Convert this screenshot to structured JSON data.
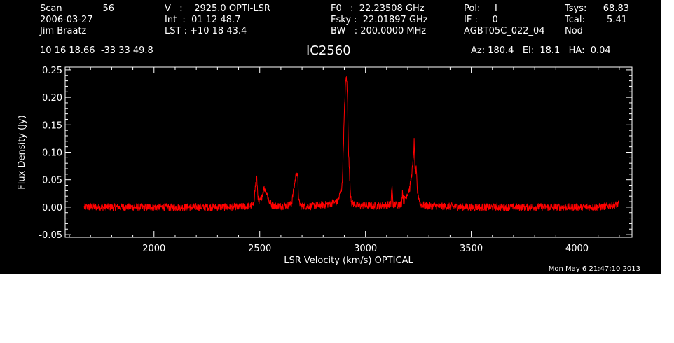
{
  "header": {
    "col1": {
      "scan_label": "Scan",
      "scan_value": "56",
      "date": "2006-03-27",
      "observer": "Jim Braatz"
    },
    "col2": {
      "v_line": "V   :    2925.0 OPTI-LSR",
      "int_line": "Int  :  01 12 48.7",
      "lst_line": "LST : +10 18 43.4"
    },
    "col3": {
      "f0_line": "F0   :  22.23508 GHz",
      "fsky_line": "Fsky :  22.01897 GHz",
      "bw_line": "BW   : 200.0000 MHz"
    },
    "col4": {
      "pol_line": "Pol:     I",
      "if_line": "IF :     0",
      "project": "AGBT05C_022_04"
    },
    "col5": {
      "tsys_label": "Tsys:",
      "tsys_value": "68.83",
      "tcal_label": "Tcal:",
      "tcal_value": "5.41",
      "mode": "Nod"
    },
    "coords": "10 16 18.66  -33 33 49.8",
    "source": "IC2560",
    "pointing": "Az: 180.4   El:  18.1   HA:  0.04"
  },
  "timestamp": "Mon May  6 21:47:10 2013",
  "colors": {
    "trace": "#ff0000",
    "axes": "#ffffff",
    "background": "#000000"
  },
  "chart_data": {
    "type": "line",
    "xlabel": "LSR Velocity (km/s) OPTICAL",
    "ylabel": "Flux Density (Jy)",
    "xlim": [
      1580,
      4260
    ],
    "ylim": [
      -0.055,
      0.255
    ],
    "xticks": [
      2000,
      2500,
      3000,
      3500,
      4000
    ],
    "yticks": [
      -0.05,
      0.0,
      0.05,
      0.1,
      0.15,
      0.2,
      0.25
    ],
    "ytick_labels": [
      "-0.05",
      "0.00",
      "0.05",
      "0.10",
      "0.15",
      "0.20",
      "0.25"
    ],
    "grid": false,
    "series": [
      {
        "x": [
          1670,
          1800,
          1950,
          2100,
          2250,
          2400,
          2470,
          2480,
          2485,
          2495,
          2510,
          2520,
          2530,
          2545,
          2560,
          2600,
          2650,
          2670,
          2675,
          2680,
          2685,
          2695,
          2750,
          2820,
          2870,
          2890,
          2900,
          2905,
          2910,
          2915,
          2920,
          2928,
          2935,
          2960,
          3050,
          3120,
          3125,
          3130,
          3170,
          3175,
          3180,
          3210,
          3220,
          3225,
          3230,
          3235,
          3240,
          3245,
          3260,
          3300,
          3500,
          3700,
          3900,
          4100,
          4200
        ],
        "values": [
          0.0,
          0.0,
          0.0,
          0.0,
          0.0,
          0.0,
          0.003,
          0.04,
          0.055,
          0.005,
          0.02,
          0.035,
          0.03,
          0.01,
          0.003,
          0.002,
          0.005,
          0.055,
          0.065,
          0.05,
          0.01,
          0.002,
          0.002,
          0.005,
          0.01,
          0.04,
          0.17,
          0.22,
          0.24,
          0.2,
          0.1,
          0.03,
          0.008,
          0.003,
          0.002,
          0.005,
          0.04,
          0.005,
          0.005,
          0.03,
          0.01,
          0.035,
          0.065,
          0.08,
          0.12,
          0.06,
          0.07,
          0.03,
          0.005,
          0.002,
          0.0,
          0.0,
          0.0,
          0.0,
          0.005
        ]
      }
    ]
  }
}
